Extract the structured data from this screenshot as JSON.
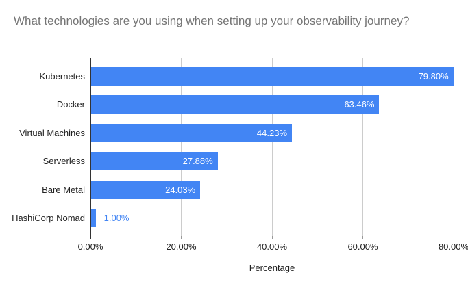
{
  "title": "What technologies are you using when setting up your observability journey?",
  "chart_data": {
    "type": "bar",
    "orientation": "horizontal",
    "title": "What technologies are you using when setting up your observability journey?",
    "categories": [
      "Kubernetes",
      "Docker",
      "Virtual Machines",
      "Serverless",
      "Bare Metal",
      "HashiCorp Nomad"
    ],
    "values": [
      79.8,
      63.46,
      44.23,
      27.88,
      24.03,
      1.0
    ],
    "value_labels": [
      "79.80%",
      "63.46%",
      "44.23%",
      "27.88%",
      "24.03%",
      "1.00%"
    ],
    "xlabel": "Percentage",
    "ylabel": "",
    "x_ticks": [
      0,
      20,
      40,
      60,
      80
    ],
    "x_tick_labels": [
      "0.00%",
      "20.00%",
      "40.00%",
      "60.00%",
      "80.00%"
    ],
    "xlim": [
      0,
      80
    ],
    "grid": true,
    "legend": "none",
    "bar_color": "#4285f4"
  },
  "colors": {
    "bar": "#4285f4",
    "title_text": "#757575",
    "axis_text": "#222222",
    "gridline": "#cccccc",
    "baseline": "#333333",
    "background": "#ffffff",
    "value_label_inside": "#ffffff",
    "value_label_outside": "#4285f4"
  }
}
